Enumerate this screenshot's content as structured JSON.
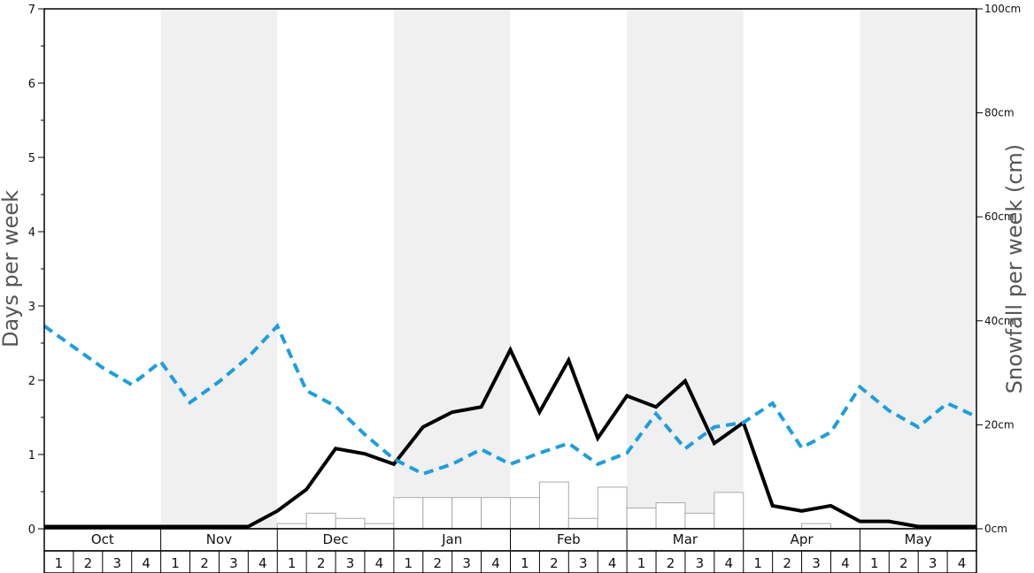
{
  "chart_data": {
    "type": "line",
    "ylabel_left": "Days per week",
    "ylabel_right": "Snowfall per week (cm)",
    "left_axis": {
      "min": 0,
      "max": 7,
      "ticks": [
        "0",
        "1",
        "2",
        "3",
        "4",
        "5",
        "6",
        "7"
      ]
    },
    "right_axis": {
      "min": 0,
      "max": 100,
      "unit": "cm",
      "ticks": [
        "0cm",
        "20cm",
        "40cm",
        "60cm",
        "80cm",
        "100cm"
      ]
    },
    "months": [
      "Oct",
      "Nov",
      "Dec",
      "Jan",
      "Feb",
      "Mar",
      "Apr",
      "May"
    ],
    "weeks": [
      "1",
      "2",
      "3",
      "4"
    ],
    "series": [
      {
        "axis": "left",
        "style": "solid",
        "color": "#000000",
        "values": [
          0.03,
          0.03,
          0.03,
          0.03,
          0.03,
          0.03,
          0.03,
          0.03,
          0.24,
          0.53,
          1.08,
          1.01,
          0.87,
          1.37,
          1.57,
          1.64,
          2.41,
          1.57,
          2.27,
          1.22,
          1.79,
          1.64,
          1.99,
          1.15,
          1.43,
          0.31,
          0.24,
          0.31,
          0.1,
          0.1,
          0.03,
          0.03,
          0.03
        ]
      },
      {
        "axis": "left",
        "style": "dashed",
        "color": "#1a9fe0",
        "values": [
          2.73,
          2.45,
          2.17,
          1.94,
          2.25,
          1.7,
          1.98,
          2.31,
          2.73,
          1.86,
          1.65,
          1.27,
          0.94,
          0.74,
          0.87,
          1.07,
          0.87,
          1.02,
          1.15,
          0.87,
          1.02,
          1.55,
          1.08,
          1.37,
          1.43,
          1.69,
          1.09,
          1.3,
          1.91,
          1.59,
          1.37,
          1.69,
          1.51
        ]
      },
      {
        "axis": "right",
        "type": "bar",
        "fill": "#ffffff",
        "stroke": "#aaaaaa",
        "values": [
          0,
          0,
          0,
          0,
          0,
          0,
          0,
          0,
          1.0,
          3.0,
          2.0,
          1.0,
          6.0,
          6.0,
          6.0,
          6.0,
          6.0,
          9.0,
          2.0,
          8.0,
          4.0,
          5.0,
          3.0,
          7.0,
          0,
          0,
          1.0,
          0,
          0,
          0,
          0,
          0
        ]
      }
    ],
    "shading": {
      "band_fill": "#f0f0f0",
      "shaded_months": [
        "Nov",
        "Jan",
        "Mar",
        "May"
      ]
    },
    "grid": false
  }
}
